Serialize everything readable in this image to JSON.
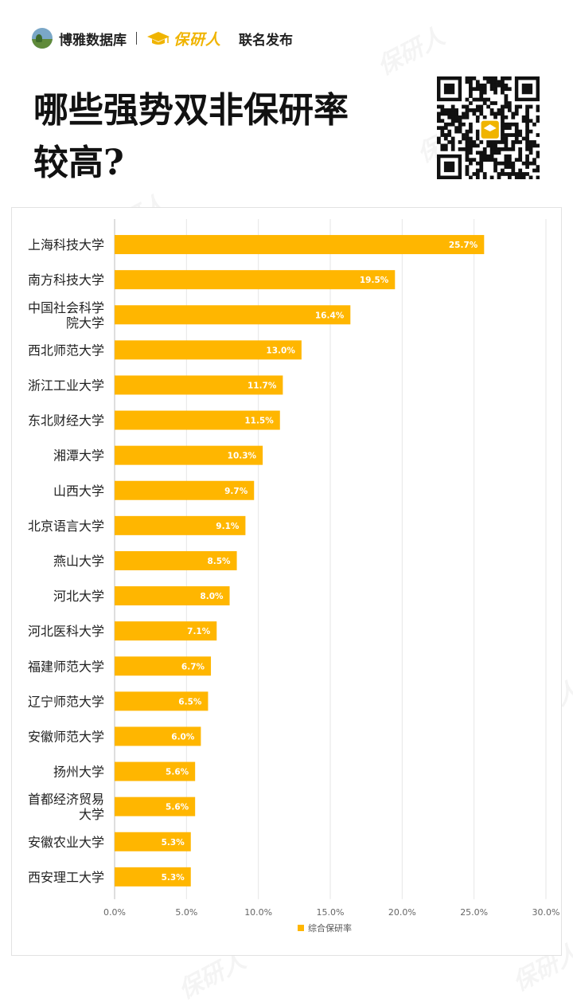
{
  "header": {
    "brand": "博雅数据库",
    "brand2": "保研人",
    "release": "联名发布"
  },
  "headline": {
    "line1": "哪些强势双非保研率",
    "line2": "较高?"
  },
  "watermark": "保研人",
  "colors": {
    "bar": "#ffb600",
    "grid": "#e6e6e6",
    "brand_gold": "#f0b400"
  },
  "chart_data": {
    "type": "bar",
    "orientation": "horizontal",
    "categories": [
      "上海科技大学",
      "南方科技大学",
      "中国社会科学院大学",
      "西北师范大学",
      "浙江工业大学",
      "东北财经大学",
      "湘潭大学",
      "山西大学",
      "北京语言大学",
      "燕山大学",
      "河北大学",
      "河北医科大学",
      "福建师范大学",
      "辽宁师范大学",
      "安徽师范大学",
      "扬州大学",
      "首都经济贸易大学",
      "安徽农业大学",
      "西安理工大学"
    ],
    "category_lines": [
      [
        "上海科技大学"
      ],
      [
        "南方科技大学"
      ],
      [
        "中国社会科学",
        "院大学"
      ],
      [
        "西北师范大学"
      ],
      [
        "浙江工业大学"
      ],
      [
        "东北财经大学"
      ],
      [
        "湘潭大学"
      ],
      [
        "山西大学"
      ],
      [
        "北京语言大学"
      ],
      [
        "燕山大学"
      ],
      [
        "河北大学"
      ],
      [
        "河北医科大学"
      ],
      [
        "福建师范大学"
      ],
      [
        "辽宁师范大学"
      ],
      [
        "安徽师范大学"
      ],
      [
        "扬州大学"
      ],
      [
        "首都经济贸易",
        "大学"
      ],
      [
        "安徽农业大学"
      ],
      [
        "西安理工大学"
      ]
    ],
    "series": [
      {
        "name": "综合保研率",
        "values": [
          25.7,
          19.5,
          16.4,
          13.0,
          11.7,
          11.5,
          10.3,
          9.7,
          9.1,
          8.5,
          8.0,
          7.1,
          6.7,
          6.5,
          6.0,
          5.6,
          5.6,
          5.3,
          5.3
        ],
        "labels": [
          "25.7%",
          "19.5%",
          "16.4%",
          "13.0%",
          "11.7%",
          "11.5%",
          "10.3%",
          "9.7%",
          "9.1%",
          "8.5%",
          "8.0%",
          "7.1%",
          "6.7%",
          "6.5%",
          "6.0%",
          "5.6%",
          "5.6%",
          "5.3%",
          "5.3%"
        ]
      }
    ],
    "xlim": [
      0,
      30
    ],
    "xticks": [
      0,
      5,
      10,
      15,
      20,
      25,
      30
    ],
    "xtick_labels": [
      "0.0%",
      "5.0%",
      "10.0%",
      "15.0%",
      "20.0%",
      "25.0%",
      "30.0%"
    ],
    "grid": true,
    "legend_position": "bottom"
  }
}
